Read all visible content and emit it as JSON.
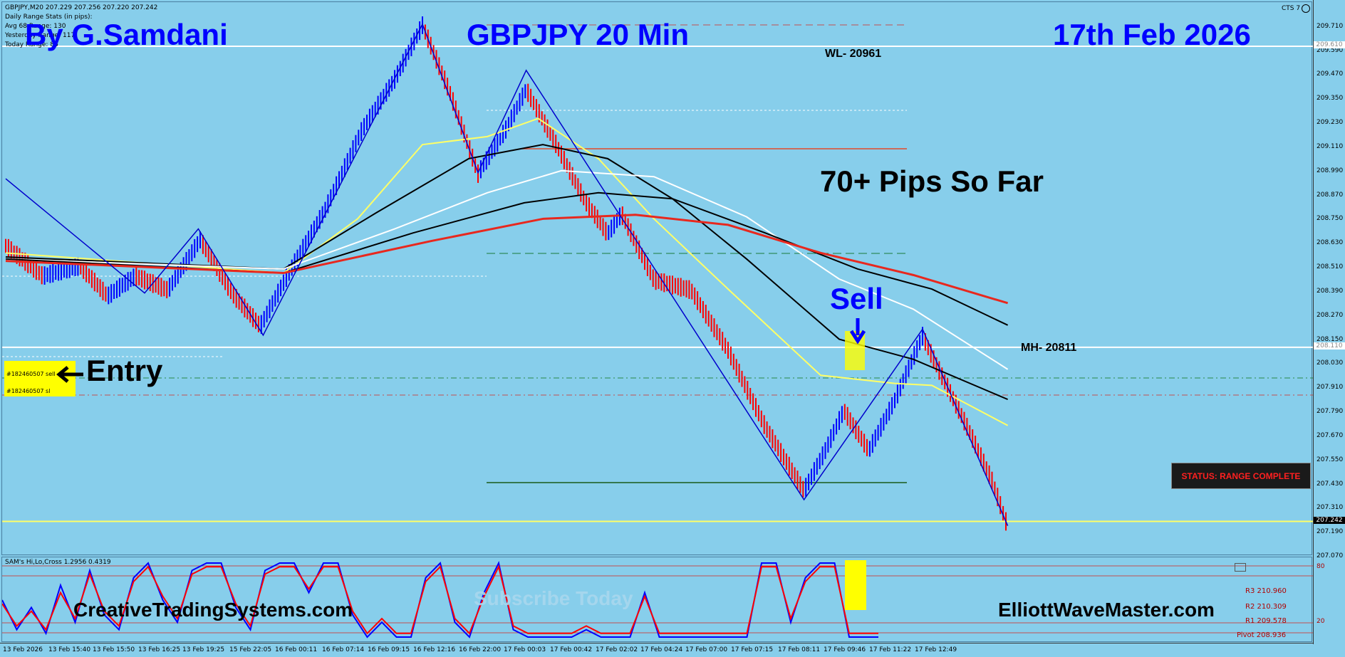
{
  "header": {
    "symbol_line": "GBPJPY,M20  207.229 207.256 207.220 207.242",
    "stats_lines": [
      "Daily Range Stats (in pips):",
      "Avg 68 Range: 130",
      "Yesterday Range: 117",
      "Today Range: 86"
    ],
    "cts": "CTS 7",
    "author": "By G.Samdani",
    "title": "GBPJPY 20 Min",
    "date": "17th Feb 2026"
  },
  "annotations": {
    "wl": "WL- 20961",
    "mh": "MH- 20811",
    "pips": "70+ Pips So Far",
    "sell": "Sell",
    "entry": "Entry",
    "order_sell": "#182460507 sell",
    "order_sl": "#182460507 sl",
    "status": "STATUS: RANGE COMPLETE",
    "site_left": "CreativeTradingSystems.com",
    "site_right": "ElliottWaveMaster.com",
    "watermark": "Subscribe Today"
  },
  "oscillator": {
    "label": "SAM's Hi,Lo,Cross 1.2956 0.4319",
    "levels": [
      "80",
      "20"
    ],
    "pivot_labels": [
      "R3 210.960",
      "R2 210.309",
      "R1 209.578",
      "Pivot 208.936"
    ]
  },
  "price_tags": {
    "current": "207.242",
    "wl": "209.610",
    "mh": "208.110"
  },
  "colors": {
    "background": "#87CEEB",
    "up_candle": "#0000ff",
    "down_candle": "#ff0000",
    "ma_yellow": "#ffff66",
    "ma_black": "#000000",
    "ma_white": "#ffffff",
    "ma_red": "#e8281e",
    "status_bg": "#1a1a1a",
    "status_text": "#ff2020",
    "highlight": "#ffff00"
  },
  "chart_data": {
    "type": "candlestick",
    "symbol": "GBPJPY",
    "timeframe": "M20",
    "ylim": [
      207.07,
      209.83
    ],
    "y_ticks": [
      "209.710",
      "209.590",
      "209.470",
      "209.350",
      "209.230",
      "209.110",
      "208.990",
      "208.870",
      "208.750",
      "208.630",
      "208.510",
      "208.390",
      "208.270",
      "208.150",
      "208.030",
      "207.910",
      "207.790",
      "207.670",
      "207.550",
      "207.430",
      "207.310",
      "207.190",
      "207.070"
    ],
    "x_ticks": [
      "13 Feb 2026",
      "13 Feb 15:40",
      "13 Feb 15:50",
      "13 Feb 16:25",
      "13 Feb 19:25",
      "15 Feb 22:05",
      "16 Feb 00:11",
      "16 Feb 07:14",
      "16 Feb 09:15",
      "16 Feb 12:16",
      "16 Feb 22:00",
      "17 Feb 00:03",
      "17 Feb 00:42",
      "17 Feb 02:02",
      "17 Feb 04:24",
      "17 Feb 07:00",
      "17 Feb 07:15",
      "17 Feb 08:11",
      "17 Feb 09:46",
      "17 Feb 11:22",
      "17 Feb 12:49"
    ],
    "price_path": [
      [
        0,
        208.62
      ],
      [
        40,
        208.47
      ],
      [
        80,
        208.52
      ],
      [
        110,
        208.37
      ],
      [
        140,
        208.47
      ],
      [
        175,
        208.4
      ],
      [
        210,
        208.65
      ],
      [
        245,
        208.38
      ],
      [
        275,
        208.22
      ],
      [
        305,
        208.48
      ],
      [
        345,
        208.8
      ],
      [
        385,
        209.2
      ],
      [
        420,
        209.45
      ],
      [
        450,
        209.72
      ],
      [
        480,
        209.38
      ],
      [
        510,
        208.98
      ],
      [
        540,
        209.2
      ],
      [
        562,
        209.4
      ],
      [
        595,
        209.12
      ],
      [
        625,
        208.85
      ],
      [
        650,
        208.68
      ],
      [
        665,
        208.78
      ],
      [
        700,
        208.45
      ],
      [
        740,
        208.4
      ],
      [
        780,
        208.1
      ],
      [
        820,
        207.72
      ],
      [
        862,
        207.4
      ],
      [
        885,
        207.6
      ],
      [
        905,
        207.8
      ],
      [
        932,
        207.6
      ],
      [
        960,
        207.85
      ],
      [
        990,
        208.17
      ],
      [
        1010,
        207.98
      ],
      [
        1040,
        207.7
      ],
      [
        1065,
        207.45
      ],
      [
        1082,
        207.22
      ]
    ],
    "zigzag": [
      [
        0,
        208.95
      ],
      [
        150,
        208.38
      ],
      [
        208,
        208.7
      ],
      [
        278,
        208.17
      ],
      [
        450,
        209.72
      ],
      [
        510,
        208.98
      ],
      [
        562,
        209.49
      ],
      [
        862,
        207.35
      ],
      [
        990,
        208.2
      ],
      [
        1082,
        207.22
      ]
    ],
    "moving_averages": [
      {
        "color": "yellow",
        "points": [
          [
            0,
            208.58
          ],
          [
            300,
            208.48
          ],
          [
            380,
            208.75
          ],
          [
            450,
            209.12
          ],
          [
            520,
            209.16
          ],
          [
            575,
            209.25
          ],
          [
            640,
            209.05
          ],
          [
            700,
            208.75
          ],
          [
            780,
            208.4
          ],
          [
            880,
            207.97
          ],
          [
            960,
            207.93
          ],
          [
            1000,
            207.92
          ],
          [
            1082,
            207.72
          ]
        ]
      },
      {
        "color": "black",
        "points": [
          [
            0,
            208.56
          ],
          [
            300,
            208.5
          ],
          [
            400,
            208.78
          ],
          [
            500,
            209.05
          ],
          [
            580,
            209.12
          ],
          [
            650,
            209.05
          ],
          [
            720,
            208.85
          ],
          [
            800,
            208.55
          ],
          [
            900,
            208.15
          ],
          [
            980,
            208.05
          ],
          [
            1082,
            207.85
          ]
        ]
      },
      {
        "color": "white",
        "points": [
          [
            0,
            208.55
          ],
          [
            300,
            208.5
          ],
          [
            420,
            208.7
          ],
          [
            520,
            208.88
          ],
          [
            600,
            208.99
          ],
          [
            700,
            208.96
          ],
          [
            800,
            208.76
          ],
          [
            900,
            208.45
          ],
          [
            980,
            208.3
          ],
          [
            1082,
            208.0
          ]
        ]
      },
      {
        "color": "black",
        "points": [
          [
            0,
            208.55
          ],
          [
            300,
            208.48
          ],
          [
            440,
            208.68
          ],
          [
            560,
            208.83
          ],
          [
            640,
            208.88
          ],
          [
            720,
            208.85
          ],
          [
            820,
            208.68
          ],
          [
            920,
            208.5
          ],
          [
            1000,
            208.4
          ],
          [
            1082,
            208.22
          ]
        ]
      },
      {
        "color": "red",
        "points": [
          [
            0,
            208.54
          ],
          [
            300,
            208.48
          ],
          [
            460,
            208.64
          ],
          [
            580,
            208.75
          ],
          [
            680,
            208.77
          ],
          [
            780,
            208.72
          ],
          [
            880,
            208.58
          ],
          [
            980,
            208.47
          ],
          [
            1082,
            208.33
          ]
        ]
      }
    ],
    "horizontal_levels": [
      {
        "price": 209.61,
        "label": "WL- 20961",
        "style": "white-solid"
      },
      {
        "price": 208.11,
        "label": "MH- 20811",
        "style": "white-solid"
      },
      {
        "price": 207.242,
        "style": "yellow-solid"
      }
    ],
    "oscillator_series": [
      {
        "color": "blue",
        "values": [
          50,
          10,
          40,
          5,
          70,
          20,
          90,
          30,
          10,
          80,
          100,
          50,
          20,
          90,
          100,
          100,
          40,
          10,
          90,
          100,
          100,
          60,
          100,
          100,
          30,
          0,
          20,
          0,
          0,
          80,
          100,
          20,
          0,
          60,
          100,
          10,
          0,
          0,
          0,
          0,
          10,
          0,
          0,
          0,
          60,
          0,
          0,
          0,
          0,
          0,
          0,
          0,
          100,
          100,
          20,
          80,
          100,
          100,
          0,
          0,
          0
        ]
      },
      {
        "color": "red",
        "values": [
          45,
          15,
          35,
          10,
          60,
          25,
          85,
          35,
          15,
          75,
          95,
          55,
          25,
          85,
          95,
          95,
          45,
          15,
          85,
          95,
          95,
          65,
          95,
          95,
          35,
          5,
          25,
          5,
          5,
          75,
          95,
          25,
          5,
          55,
          95,
          15,
          5,
          5,
          5,
          5,
          15,
          5,
          5,
          5,
          55,
          5,
          5,
          5,
          5,
          5,
          5,
          5,
          95,
          95,
          25,
          75,
          95,
          95,
          5,
          5,
          5
        ]
      }
    ]
  }
}
